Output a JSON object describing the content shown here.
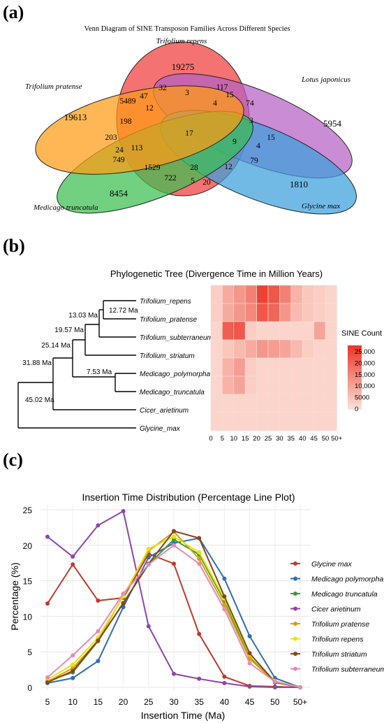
{
  "panel_labels": {
    "a": "(a)",
    "b": "(b)",
    "c": "(c)"
  },
  "chart_data": [
    {
      "type": "venn",
      "title": "Venn Diagram of SINE Transposon Families Across Different Species",
      "sets": [
        {
          "name": "Trifolium repens",
          "color": "#f03c3c"
        },
        {
          "name": "Lotus japonicus",
          "color": "#b65fc4"
        },
        {
          "name": "Glycine max",
          "color": "#3ca0dc"
        },
        {
          "name": "Medicago truncatula",
          "color": "#3cbe50"
        },
        {
          "name": "Trifolium pratense",
          "color": "#ff9b14"
        }
      ],
      "region_values": [
        "19275",
        "5954",
        "1810",
        "8454",
        "19613",
        "32",
        "3",
        "117",
        "15",
        "74",
        "47",
        "5489",
        "12",
        "4",
        "3",
        "198",
        "17",
        "203",
        "113",
        "9",
        "4",
        "15",
        "24",
        "749",
        "1529",
        "28",
        "12",
        "79",
        "722",
        "5",
        "20"
      ]
    },
    {
      "type": "heatmap",
      "title": "Phylogenetic Tree (Divergence Time in Million Years)",
      "species": [
        "Trifolium_repens",
        "Trifolium_pratense",
        "Trifolium_subterraneum",
        "Trifolium_striatum",
        "Medicago_polymorpha",
        "Medicago_truncatula",
        "Cicer_arietinum",
        "Glycine_max"
      ],
      "node_labels": [
        "12.72 Ma",
        "13.03 Ma",
        "19.57 Ma",
        "25.14 Ma",
        "7.53 Ma",
        "31.88 Ma",
        "45.02 Ma"
      ],
      "x_ticks": [
        "0",
        "5",
        "10",
        "15",
        "20",
        "25",
        "30",
        "35",
        "40",
        "45",
        "50",
        "50+"
      ],
      "colorbar": {
        "title": "SINE Count",
        "ticks": [
          "25,000",
          "20,000",
          "15,000",
          "10,000",
          "5000",
          "0"
        ],
        "low": "#fde3da",
        "high": "#ea3426"
      },
      "values": [
        [
          3000,
          8000,
          11000,
          14000,
          23000,
          20000,
          14000,
          7000,
          4000,
          3000,
          2000
        ],
        [
          3000,
          8000,
          11000,
          13000,
          20000,
          18000,
          11000,
          6000,
          4000,
          3000,
          2000
        ],
        [
          2000,
          19000,
          20000,
          3000,
          2000,
          2000,
          2000,
          2000,
          2000,
          9000,
          2000
        ],
        [
          2000,
          4000,
          6000,
          8000,
          11000,
          10000,
          9000,
          6000,
          3000,
          2000,
          2000
        ],
        [
          2000,
          7000,
          10000,
          3000,
          2000,
          2000,
          2000,
          2000,
          2000,
          2000,
          2000
        ],
        [
          2000,
          7000,
          9000,
          3000,
          2000,
          2000,
          2000,
          2000,
          2000,
          2000,
          2000
        ],
        [
          2000,
          2000,
          2000,
          2000,
          2000,
          2000,
          2000,
          2000,
          2000,
          2000,
          2000
        ],
        [
          2000,
          2000,
          2000,
          2000,
          2000,
          2000,
          2000,
          2000,
          2000,
          2000,
          2000
        ]
      ]
    },
    {
      "type": "line",
      "title": "Insertion Time Distribution (Percentage Line Plot)",
      "xlabel": "Insertion Time (Ma)",
      "ylabel": "Percentage (%)",
      "categories": [
        "5",
        "10",
        "15",
        "20",
        "25",
        "30",
        "35",
        "40",
        "45",
        "50",
        "50+"
      ],
      "ylim": [
        0,
        25
      ],
      "yticks": [
        0,
        5,
        10,
        15,
        20,
        25
      ],
      "grid": true,
      "legend_position": "right",
      "series": [
        {
          "name": "Glycine max",
          "color": "#c0392b",
          "values": [
            11.8,
            17.3,
            12.2,
            12.6,
            18.8,
            17.4,
            7.5,
            1.5,
            0.2,
            0.1,
            0
          ]
        },
        {
          "name": "Medicago polymorpha",
          "color": "#2e6db8",
          "values": [
            0.6,
            1.3,
            3.7,
            11.3,
            18.3,
            20.3,
            21.0,
            15.3,
            7.2,
            1.3,
            0
          ]
        },
        {
          "name": "Medicago truncatula",
          "color": "#3a9a3a",
          "values": [
            0.9,
            2.1,
            6.5,
            11.9,
            17.3,
            20.8,
            18.7,
            12.2,
            4.2,
            0.7,
            0
          ]
        },
        {
          "name": "Cicer arietinum",
          "color": "#8e44ad",
          "values": [
            21.2,
            18.4,
            22.8,
            24.8,
            8.6,
            1.9,
            1.2,
            0.6,
            0.1,
            0,
            0
          ]
        },
        {
          "name": "Trifolium pratense",
          "color": "#d4a017",
          "values": [
            0.8,
            2.7,
            6.6,
            12.9,
            19.2,
            21.9,
            18.1,
            11.6,
            4.0,
            0.8,
            0
          ]
        },
        {
          "name": "Trifolium repens",
          "color": "#e6e600",
          "values": [
            1.1,
            3.2,
            7.0,
            12.8,
            19.5,
            21.2,
            19.0,
            12.5,
            4.6,
            0.9,
            0
          ]
        },
        {
          "name": "Trifolium striatum",
          "color": "#8b4513",
          "values": [
            0.7,
            2.3,
            6.6,
            11.8,
            17.4,
            22.0,
            21.0,
            12.8,
            4.8,
            0.7,
            0
          ]
        },
        {
          "name": "Trifolium subterraneum",
          "color": "#e68ab8",
          "values": [
            1.4,
            4.5,
            7.9,
            13.2,
            17.3,
            20.0,
            17.4,
            11.0,
            3.4,
            0.8,
            0
          ]
        }
      ]
    }
  ]
}
